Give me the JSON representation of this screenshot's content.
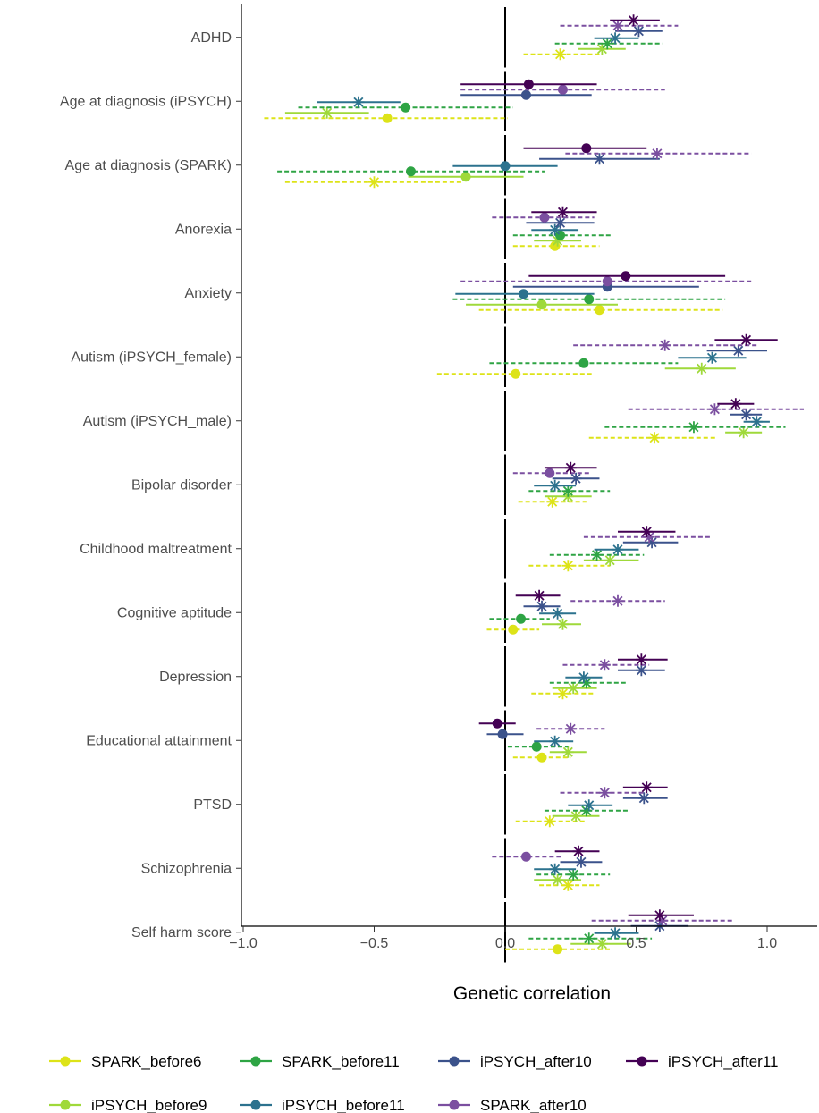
{
  "chart_data": {
    "type": "forest",
    "xlabel": "Genetic correlation",
    "xlim": [
      -1.02,
      1.2
    ],
    "xticks": [
      -1.0,
      -0.5,
      0.0,
      0.5,
      1.0
    ],
    "xtick_labels": [
      "−1.0",
      "−0.5",
      "0.0",
      "0.5",
      "1.0"
    ],
    "reference_line": 0,
    "legend_position": "bottom",
    "series": [
      {
        "name": "SPARK_before6",
        "color": "#dde318",
        "dashed": true
      },
      {
        "name": "iPSYCH_before9",
        "color": "#9fd93a",
        "dashed": false
      },
      {
        "name": "SPARK_before11",
        "color": "#2ea444",
        "dashed": true
      },
      {
        "name": "iPSYCH_before11",
        "color": "#2c728e",
        "dashed": false
      },
      {
        "name": "iPSYCH_after10",
        "color": "#3b528b",
        "dashed": false
      },
      {
        "name": "SPARK_after10",
        "color": "#7b4fa0",
        "dashed": true
      },
      {
        "name": "iPSYCH_after11",
        "color": "#440154",
        "dashed": false
      }
    ],
    "categories": [
      {
        "label": "ADHD",
        "points": [
          {
            "series": 0,
            "est": 0.21,
            "lo": 0.07,
            "hi": 0.36,
            "sig": true
          },
          {
            "series": 1,
            "est": 0.37,
            "lo": 0.28,
            "hi": 0.46,
            "sig": true
          },
          {
            "series": 2,
            "est": 0.39,
            "lo": 0.19,
            "hi": 0.6,
            "sig": true
          },
          {
            "series": 3,
            "est": 0.42,
            "lo": 0.34,
            "hi": 0.51,
            "sig": true
          },
          {
            "series": 4,
            "est": 0.51,
            "lo": 0.42,
            "hi": 0.6,
            "sig": true
          },
          {
            "series": 5,
            "est": 0.43,
            "lo": 0.21,
            "hi": 0.66,
            "sig": true
          },
          {
            "series": 6,
            "est": 0.49,
            "lo": 0.4,
            "hi": 0.59,
            "sig": true
          }
        ]
      },
      {
        "label": "Age at diagnosis (iPSYCH)",
        "points": [
          {
            "series": 0,
            "est": -0.45,
            "lo": -0.92,
            "hi": 0.01,
            "sig": false
          },
          {
            "series": 1,
            "est": -0.68,
            "lo": -0.84,
            "hi": -0.52,
            "sig": true
          },
          {
            "series": 2,
            "est": -0.38,
            "lo": -0.79,
            "hi": 0.03,
            "sig": false
          },
          {
            "series": 3,
            "est": -0.56,
            "lo": -0.72,
            "hi": -0.4,
            "sig": true
          },
          {
            "series": 4,
            "est": 0.08,
            "lo": -0.17,
            "hi": 0.33,
            "sig": false
          },
          {
            "series": 5,
            "est": 0.22,
            "lo": -0.17,
            "hi": 0.61,
            "sig": false
          },
          {
            "series": 6,
            "est": 0.09,
            "lo": -0.17,
            "hi": 0.35,
            "sig": false
          }
        ]
      },
      {
        "label": "Age at diagnosis (SPARK)",
        "points": [
          {
            "series": 0,
            "est": -0.5,
            "lo": -0.84,
            "hi": -0.16,
            "sig": true
          },
          {
            "series": 1,
            "est": -0.15,
            "lo": -0.37,
            "hi": 0.07,
            "sig": false
          },
          {
            "series": 2,
            "est": -0.36,
            "lo": -0.87,
            "hi": 0.15,
            "sig": false
          },
          {
            "series": 3,
            "est": 0.0,
            "lo": -0.2,
            "hi": 0.2,
            "sig": false
          },
          {
            "series": 4,
            "est": 0.36,
            "lo": 0.13,
            "hi": 0.59,
            "sig": true
          },
          {
            "series": 5,
            "est": 0.58,
            "lo": 0.23,
            "hi": 0.94,
            "sig": true
          },
          {
            "series": 6,
            "est": 0.31,
            "lo": 0.07,
            "hi": 0.54,
            "sig": false
          }
        ]
      },
      {
        "label": "Anorexia",
        "points": [
          {
            "series": 0,
            "est": 0.19,
            "lo": 0.03,
            "hi": 0.36,
            "sig": false
          },
          {
            "series": 1,
            "est": 0.2,
            "lo": 0.11,
            "hi": 0.29,
            "sig": true
          },
          {
            "series": 2,
            "est": 0.21,
            "lo": 0.03,
            "hi": 0.41,
            "sig": false
          },
          {
            "series": 3,
            "est": 0.19,
            "lo": 0.1,
            "hi": 0.28,
            "sig": true
          },
          {
            "series": 4,
            "est": 0.21,
            "lo": 0.08,
            "hi": 0.34,
            "sig": true
          },
          {
            "series": 5,
            "est": 0.15,
            "lo": -0.05,
            "hi": 0.34,
            "sig": false
          },
          {
            "series": 6,
            "est": 0.22,
            "lo": 0.1,
            "hi": 0.35,
            "sig": true
          }
        ]
      },
      {
        "label": "Anxiety",
        "points": [
          {
            "series": 0,
            "est": 0.36,
            "lo": -0.1,
            "hi": 0.83,
            "sig": false
          },
          {
            "series": 1,
            "est": 0.14,
            "lo": -0.15,
            "hi": 0.43,
            "sig": false
          },
          {
            "series": 2,
            "est": 0.32,
            "lo": -0.2,
            "hi": 0.84,
            "sig": false
          },
          {
            "series": 3,
            "est": 0.07,
            "lo": -0.19,
            "hi": 0.34,
            "sig": false
          },
          {
            "series": 4,
            "est": 0.39,
            "lo": 0.03,
            "hi": 0.74,
            "sig": false
          },
          {
            "series": 5,
            "est": 0.39,
            "lo": -0.17,
            "hi": 0.94,
            "sig": false
          },
          {
            "series": 6,
            "est": 0.46,
            "lo": 0.09,
            "hi": 0.84,
            "sig": false
          }
        ]
      },
      {
        "label": "Autism (iPSYCH_female)",
        "points": [
          {
            "series": 0,
            "est": 0.04,
            "lo": -0.26,
            "hi": 0.33,
            "sig": false
          },
          {
            "series": 1,
            "est": 0.75,
            "lo": 0.61,
            "hi": 0.88,
            "sig": true
          },
          {
            "series": 2,
            "est": 0.3,
            "lo": -0.06,
            "hi": 0.66,
            "sig": false
          },
          {
            "series": 3,
            "est": 0.79,
            "lo": 0.66,
            "hi": 0.92,
            "sig": true
          },
          {
            "series": 4,
            "est": 0.89,
            "lo": 0.77,
            "hi": 1.0,
            "sig": true
          },
          {
            "series": 5,
            "est": 0.61,
            "lo": 0.26,
            "hi": 0.96,
            "sig": true
          },
          {
            "series": 6,
            "est": 0.92,
            "lo": 0.8,
            "hi": 1.04,
            "sig": true
          }
        ]
      },
      {
        "label": "Autism (iPSYCH_male)",
        "points": [
          {
            "series": 0,
            "est": 0.57,
            "lo": 0.32,
            "hi": 0.81,
            "sig": true
          },
          {
            "series": 1,
            "est": 0.91,
            "lo": 0.84,
            "hi": 0.98,
            "sig": true
          },
          {
            "series": 2,
            "est": 0.72,
            "lo": 0.38,
            "hi": 1.07,
            "sig": true
          },
          {
            "series": 3,
            "est": 0.96,
            "lo": 0.91,
            "hi": 1.01,
            "sig": true
          },
          {
            "series": 4,
            "est": 0.92,
            "lo": 0.86,
            "hi": 0.98,
            "sig": true
          },
          {
            "series": 5,
            "est": 0.8,
            "lo": 0.47,
            "hi": 1.14,
            "sig": true
          },
          {
            "series": 6,
            "est": 0.88,
            "lo": 0.81,
            "hi": 0.95,
            "sig": true
          }
        ]
      },
      {
        "label": "Bipolar disorder",
        "points": [
          {
            "series": 0,
            "est": 0.18,
            "lo": 0.05,
            "hi": 0.31,
            "sig": true
          },
          {
            "series": 1,
            "est": 0.24,
            "lo": 0.15,
            "hi": 0.33,
            "sig": true
          },
          {
            "series": 2,
            "est": 0.24,
            "lo": 0.09,
            "hi": 0.4,
            "sig": true
          },
          {
            "series": 3,
            "est": 0.19,
            "lo": 0.11,
            "hi": 0.27,
            "sig": true
          },
          {
            "series": 4,
            "est": 0.27,
            "lo": 0.18,
            "hi": 0.36,
            "sig": true
          },
          {
            "series": 5,
            "est": 0.17,
            "lo": 0.03,
            "hi": 0.33,
            "sig": false
          },
          {
            "series": 6,
            "est": 0.25,
            "lo": 0.15,
            "hi": 0.35,
            "sig": true
          }
        ]
      },
      {
        "label": "Childhood maltreatment",
        "points": [
          {
            "series": 0,
            "est": 0.24,
            "lo": 0.09,
            "hi": 0.4,
            "sig": true
          },
          {
            "series": 1,
            "est": 0.4,
            "lo": 0.3,
            "hi": 0.51,
            "sig": true
          },
          {
            "series": 2,
            "est": 0.35,
            "lo": 0.17,
            "hi": 0.53,
            "sig": true
          },
          {
            "series": 3,
            "est": 0.43,
            "lo": 0.34,
            "hi": 0.51,
            "sig": true
          },
          {
            "series": 4,
            "est": 0.56,
            "lo": 0.45,
            "hi": 0.66,
            "sig": true
          },
          {
            "series": 5,
            "est": 0.55,
            "lo": 0.3,
            "hi": 0.79,
            "sig": true
          },
          {
            "series": 6,
            "est": 0.54,
            "lo": 0.43,
            "hi": 0.65,
            "sig": true
          }
        ]
      },
      {
        "label": "Cognitive aptitude",
        "points": [
          {
            "series": 0,
            "est": 0.03,
            "lo": -0.07,
            "hi": 0.13,
            "sig": false
          },
          {
            "series": 1,
            "est": 0.22,
            "lo": 0.14,
            "hi": 0.29,
            "sig": true
          },
          {
            "series": 2,
            "est": 0.06,
            "lo": -0.06,
            "hi": 0.17,
            "sig": false
          },
          {
            "series": 3,
            "est": 0.2,
            "lo": 0.13,
            "hi": 0.27,
            "sig": true
          },
          {
            "series": 4,
            "est": 0.14,
            "lo": 0.07,
            "hi": 0.21,
            "sig": true
          },
          {
            "series": 5,
            "est": 0.43,
            "lo": 0.25,
            "hi": 0.61,
            "sig": true
          },
          {
            "series": 6,
            "est": 0.13,
            "lo": 0.04,
            "hi": 0.21,
            "sig": true
          }
        ]
      },
      {
        "label": "Depression",
        "points": [
          {
            "series": 0,
            "est": 0.22,
            "lo": 0.1,
            "hi": 0.34,
            "sig": true
          },
          {
            "series": 1,
            "est": 0.26,
            "lo": 0.18,
            "hi": 0.35,
            "sig": true
          },
          {
            "series": 2,
            "est": 0.31,
            "lo": 0.17,
            "hi": 0.46,
            "sig": true
          },
          {
            "series": 3,
            "est": 0.3,
            "lo": 0.23,
            "hi": 0.37,
            "sig": true
          },
          {
            "series": 4,
            "est": 0.52,
            "lo": 0.43,
            "hi": 0.61,
            "sig": true
          },
          {
            "series": 5,
            "est": 0.38,
            "lo": 0.22,
            "hi": 0.55,
            "sig": true
          },
          {
            "series": 6,
            "est": 0.52,
            "lo": 0.43,
            "hi": 0.62,
            "sig": true
          }
        ]
      },
      {
        "label": "Educational attainment",
        "points": [
          {
            "series": 0,
            "est": 0.14,
            "lo": 0.03,
            "hi": 0.25,
            "sig": false
          },
          {
            "series": 1,
            "est": 0.24,
            "lo": 0.17,
            "hi": 0.31,
            "sig": true
          },
          {
            "series": 2,
            "est": 0.12,
            "lo": 0.01,
            "hi": 0.24,
            "sig": false
          },
          {
            "series": 3,
            "est": 0.19,
            "lo": 0.11,
            "hi": 0.26,
            "sig": true
          },
          {
            "series": 4,
            "est": -0.01,
            "lo": -0.07,
            "hi": 0.07,
            "sig": false
          },
          {
            "series": 5,
            "est": 0.25,
            "lo": 0.12,
            "hi": 0.38,
            "sig": true
          },
          {
            "series": 6,
            "est": -0.03,
            "lo": -0.1,
            "hi": 0.04,
            "sig": false
          }
        ]
      },
      {
        "label": "PTSD",
        "points": [
          {
            "series": 0,
            "est": 0.17,
            "lo": 0.04,
            "hi": 0.31,
            "sig": true
          },
          {
            "series": 1,
            "est": 0.27,
            "lo": 0.18,
            "hi": 0.36,
            "sig": true
          },
          {
            "series": 2,
            "est": 0.31,
            "lo": 0.15,
            "hi": 0.47,
            "sig": true
          },
          {
            "series": 3,
            "est": 0.32,
            "lo": 0.24,
            "hi": 0.41,
            "sig": true
          },
          {
            "series": 4,
            "est": 0.53,
            "lo": 0.45,
            "hi": 0.62,
            "sig": true
          },
          {
            "series": 5,
            "est": 0.38,
            "lo": 0.21,
            "hi": 0.54,
            "sig": true
          },
          {
            "series": 6,
            "est": 0.54,
            "lo": 0.45,
            "hi": 0.62,
            "sig": true
          }
        ]
      },
      {
        "label": "Schizophrenia",
        "points": [
          {
            "series": 0,
            "est": 0.24,
            "lo": 0.13,
            "hi": 0.36,
            "sig": true
          },
          {
            "series": 1,
            "est": 0.2,
            "lo": 0.11,
            "hi": 0.29,
            "sig": true
          },
          {
            "series": 2,
            "est": 0.26,
            "lo": 0.12,
            "hi": 0.4,
            "sig": true
          },
          {
            "series": 3,
            "est": 0.19,
            "lo": 0.11,
            "hi": 0.27,
            "sig": true
          },
          {
            "series": 4,
            "est": 0.29,
            "lo": 0.21,
            "hi": 0.37,
            "sig": true
          },
          {
            "series": 5,
            "est": 0.08,
            "lo": -0.05,
            "hi": 0.22,
            "sig": false
          },
          {
            "series": 6,
            "est": 0.28,
            "lo": 0.19,
            "hi": 0.36,
            "sig": true
          }
        ]
      },
      {
        "label": "Self harm score",
        "points": [
          {
            "series": 0,
            "est": 0.2,
            "lo": 0.0,
            "hi": 0.4,
            "sig": false
          },
          {
            "series": 1,
            "est": 0.37,
            "lo": 0.25,
            "hi": 0.48,
            "sig": true
          },
          {
            "series": 2,
            "est": 0.32,
            "lo": 0.09,
            "hi": 0.56,
            "sig": true
          },
          {
            "series": 3,
            "est": 0.42,
            "lo": 0.34,
            "hi": 0.51,
            "sig": true
          },
          {
            "series": 4,
            "est": 0.59,
            "lo": 0.48,
            "hi": 0.7,
            "sig": true
          },
          {
            "series": 5,
            "est": 0.6,
            "lo": 0.33,
            "hi": 0.87,
            "sig": true
          },
          {
            "series": 6,
            "est": 0.59,
            "lo": 0.47,
            "hi": 0.72,
            "sig": true
          }
        ]
      }
    ]
  }
}
